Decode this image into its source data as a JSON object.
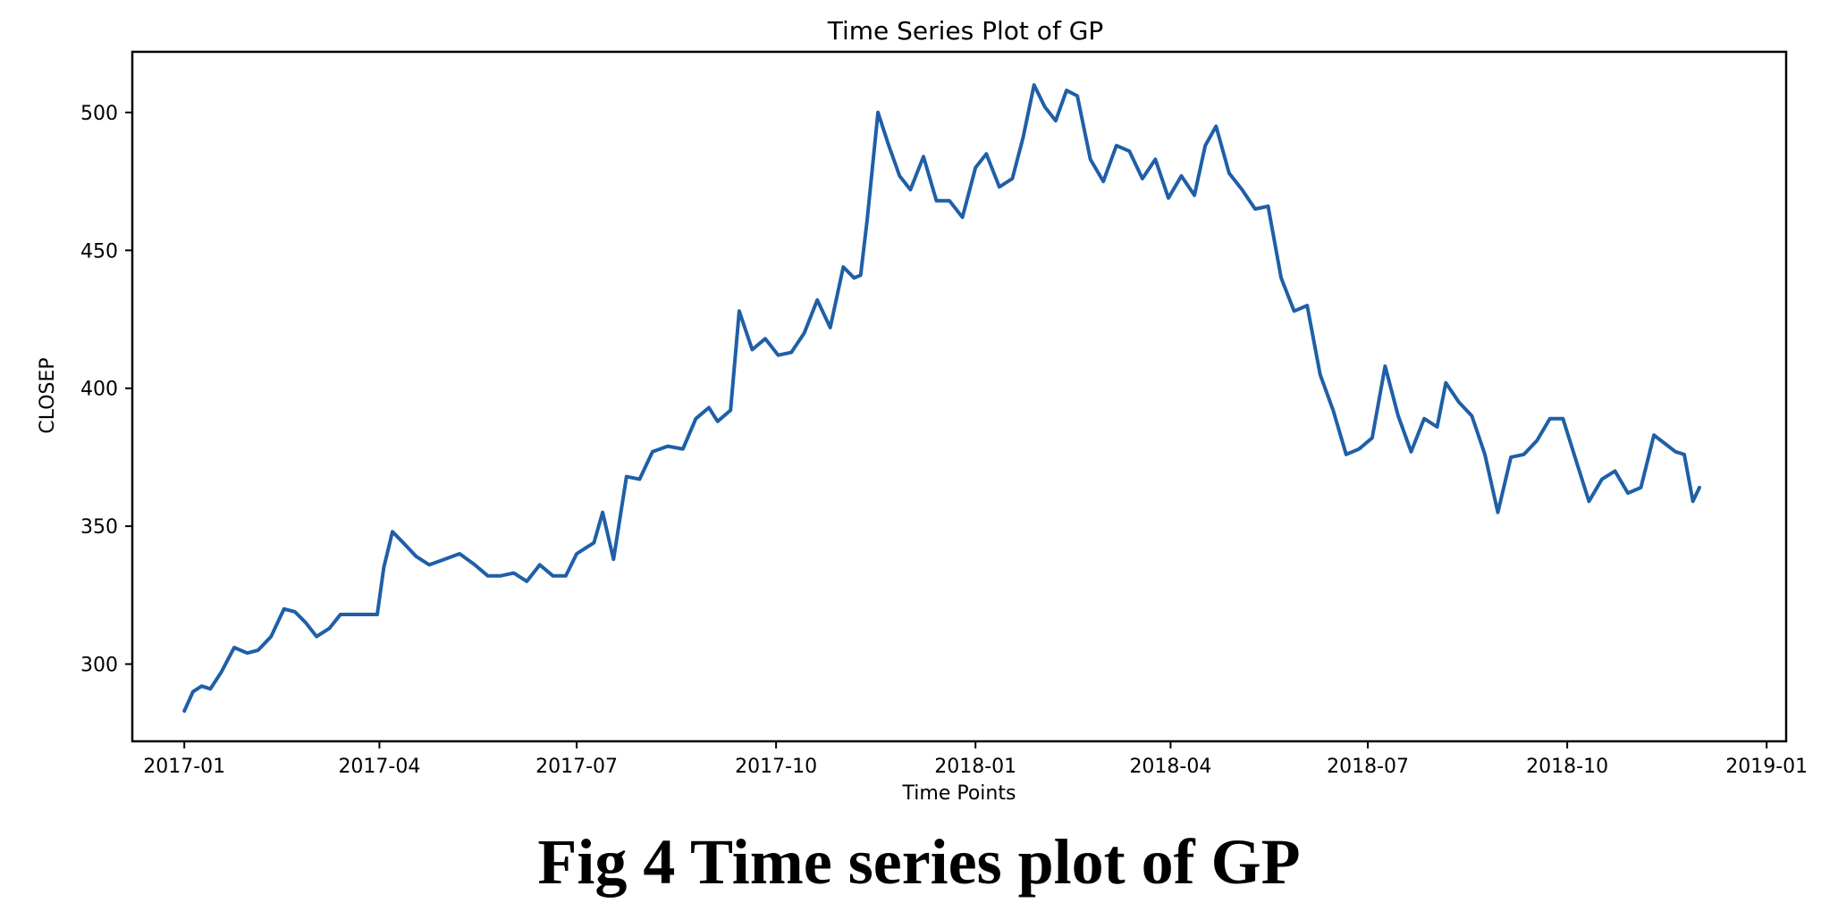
{
  "chart_data": {
    "type": "line",
    "title": "Time Series Plot of GP",
    "xlabel": "Time Points",
    "ylabel": "CLOSEP",
    "x_ticks": [
      "2017-01",
      "2017-04",
      "2017-07",
      "2017-10",
      "2018-01",
      "2018-04",
      "2018-07",
      "2018-10",
      "2019-01"
    ],
    "y_ticks": [
      300,
      350,
      400,
      450,
      500
    ],
    "xlim": [
      "2016-12-08",
      "2019-01-10"
    ],
    "ylim": [
      272,
      522
    ],
    "grid": false,
    "line_color": "#1f5fa8",
    "series": [
      {
        "x": [
          "2017-01-01",
          "2017-01-05",
          "2017-01-09",
          "2017-01-13",
          "2017-01-18",
          "2017-01-24",
          "2017-01-30",
          "2017-02-04",
          "2017-02-10",
          "2017-02-16",
          "2017-02-21",
          "2017-02-26",
          "2017-03-03",
          "2017-03-09",
          "2017-03-14",
          "2017-03-19",
          "2017-03-25",
          "2017-03-31",
          "2017-04-03",
          "2017-04-07",
          "2017-04-12",
          "2017-04-18",
          "2017-04-24",
          "2017-05-01",
          "2017-05-08",
          "2017-05-15",
          "2017-05-21",
          "2017-05-27",
          "2017-06-02",
          "2017-06-08",
          "2017-06-14",
          "2017-06-20",
          "2017-06-26",
          "2017-07-01",
          "2017-07-05",
          "2017-07-09",
          "2017-07-13",
          "2017-07-18",
          "2017-07-24",
          "2017-07-30",
          "2017-08-05",
          "2017-08-12",
          "2017-08-19",
          "2017-08-25",
          "2017-08-31",
          "2017-09-04",
          "2017-09-07",
          "2017-09-10",
          "2017-09-14",
          "2017-09-20",
          "2017-09-26",
          "2017-10-02",
          "2017-10-08",
          "2017-10-14",
          "2017-10-20",
          "2017-10-26",
          "2017-11-01",
          "2017-11-06",
          "2017-11-09",
          "2017-11-12",
          "2017-11-17",
          "2017-11-22",
          "2017-11-27",
          "2017-12-02",
          "2017-12-08",
          "2017-12-14",
          "2017-12-20",
          "2017-12-26",
          "2018-01-01",
          "2018-01-06",
          "2018-01-12",
          "2018-01-18",
          "2018-01-23",
          "2018-01-28",
          "2018-02-02",
          "2018-02-07",
          "2018-02-12",
          "2018-02-17",
          "2018-02-23",
          "2018-03-01",
          "2018-03-07",
          "2018-03-13",
          "2018-03-19",
          "2018-03-25",
          "2018-03-31",
          "2018-04-06",
          "2018-04-12",
          "2018-04-17",
          "2018-04-22",
          "2018-04-28",
          "2018-05-04",
          "2018-05-10",
          "2018-05-16",
          "2018-05-22",
          "2018-05-28",
          "2018-06-03",
          "2018-06-09",
          "2018-06-15",
          "2018-06-21",
          "2018-06-27",
          "2018-07-03",
          "2018-07-09",
          "2018-07-15",
          "2018-07-21",
          "2018-07-27",
          "2018-08-02",
          "2018-08-06",
          "2018-08-12",
          "2018-08-18",
          "2018-08-24",
          "2018-08-30",
          "2018-09-05",
          "2018-09-11",
          "2018-09-17",
          "2018-09-23",
          "2018-09-29",
          "2018-10-05",
          "2018-10-11",
          "2018-10-17",
          "2018-10-23",
          "2018-10-29",
          "2018-11-04",
          "2018-11-10",
          "2018-11-15",
          "2018-11-20",
          "2018-11-24",
          "2018-11-28",
          "2018-12-01"
        ],
        "values": [
          283,
          290,
          292,
          291,
          297,
          306,
          304,
          305,
          310,
          320,
          319,
          315,
          310,
          313,
          318,
          318,
          318,
          318,
          335,
          348,
          344,
          339,
          336,
          338,
          340,
          336,
          332,
          332,
          333,
          330,
          336,
          332,
          332,
          340,
          342,
          344,
          355,
          338,
          368,
          367,
          377,
          379,
          378,
          389,
          393,
          388,
          390,
          392,
          428,
          414,
          418,
          412,
          413,
          420,
          432,
          422,
          444,
          440,
          441,
          461,
          500,
          488,
          477,
          472,
          484,
          468,
          468,
          462,
          480,
          485,
          473,
          476,
          491,
          510,
          502,
          497,
          508,
          506,
          483,
          475,
          488,
          486,
          476,
          483,
          469,
          477,
          470,
          488,
          495,
          478,
          472,
          465,
          466,
          440,
          428,
          430,
          405,
          392,
          376,
          378,
          382,
          408,
          390,
          377,
          389,
          386,
          402,
          395,
          390,
          376,
          355,
          375,
          376,
          381,
          389,
          389,
          374,
          359,
          367,
          370,
          362,
          364,
          383,
          380,
          377,
          376,
          359,
          364
        ]
      }
    ]
  },
  "caption": "Fig 4 Time series plot of GP"
}
